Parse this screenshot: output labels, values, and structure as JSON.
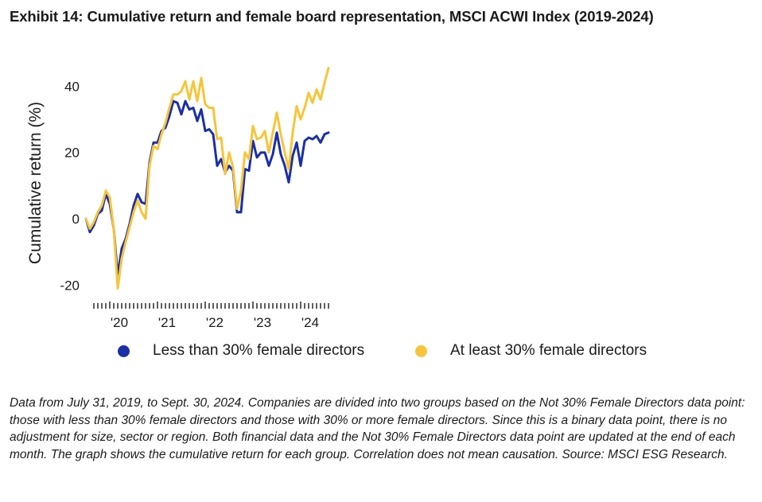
{
  "title": "Exhibit 14: Cumulative return and female board representation, MSCI ACWI Index (2019-2024)",
  "footnote": "Data from July 31, 2019, to Sept. 30, 2024. Companies are divided into two groups based on the Not 30% Female Directors data point: those with less than 30% female directors and those with 30% or more female directors. Since this is a binary data point, there is no adjustment for size, sector or region. Both financial data and the Not 30% Female Directors data point are updated at the end of each month. The graph shows the cumulative return for each group. Correlation does not mean causation. Source: MSCI ESG Research.",
  "colors": {
    "less": "#1b2fa8",
    "atleast": "#f7c53a",
    "axis": "#1a1a1a"
  },
  "chart_data": {
    "type": "line",
    "ylabel": "Cumulative return (%)",
    "xlabel": "",
    "ylim": [
      -22,
      46
    ],
    "yticks": [
      -20,
      0,
      20,
      40
    ],
    "x_start": "2019-07",
    "x_end": "2024-09",
    "xtick_labels": [
      {
        "label": "'20",
        "month_index": 6
      },
      {
        "label": "'21",
        "month_index": 18
      },
      {
        "label": "'22",
        "month_index": 30
      },
      {
        "label": "'23",
        "month_index": 42
      },
      {
        "label": "'24",
        "month_index": 54
      }
    ],
    "legend": "bottom",
    "series": [
      {
        "name": "Less than 30% female directors",
        "color": "#1b2fa8",
        "values": [
          0,
          -4,
          -2,
          1.5,
          2.5,
          7.5,
          4.5,
          -3,
          -17,
          -9,
          -6,
          -1.5,
          4,
          7.5,
          5,
          4.5,
          17,
          23,
          23,
          26.5,
          27.5,
          31,
          35.5,
          35,
          31.5,
          35.5,
          33,
          33.5,
          29.5,
          33,
          26.5,
          27,
          25.5,
          16,
          18,
          14,
          16,
          14.5,
          2,
          2,
          15,
          14.5,
          23.5,
          18.5,
          20,
          20,
          16,
          19.5,
          26,
          19.5,
          16,
          11,
          19,
          23,
          16,
          23.5,
          24.5,
          24,
          25,
          23,
          25.5,
          26
        ]
      },
      {
        "name": "At least 30% female directors",
        "color": "#f7c53a",
        "values": [
          0,
          -3,
          -1,
          2,
          4,
          8.5,
          6.5,
          -3,
          -21,
          -12,
          -7,
          -2.5,
          2,
          5.5,
          2,
          0,
          16,
          22,
          21,
          25.5,
          29,
          33.5,
          37.5,
          37.5,
          38.5,
          41.5,
          36,
          41.5,
          35.5,
          42.5,
          34.5,
          33.5,
          33.5,
          24,
          24.5,
          13.5,
          20,
          15.5,
          3,
          8.5,
          20,
          18,
          28,
          24,
          24.5,
          26.5,
          20,
          26,
          32,
          25.5,
          20,
          15,
          26,
          34,
          30,
          33.5,
          38,
          35,
          39,
          36,
          41,
          45.5
        ]
      }
    ]
  }
}
